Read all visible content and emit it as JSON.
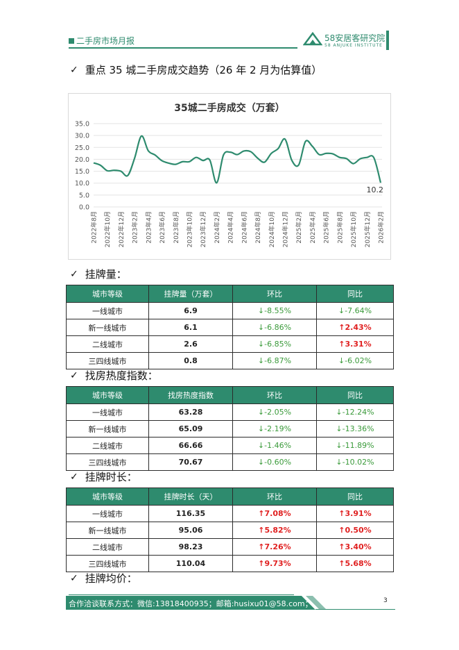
{
  "header": {
    "title": "二手房市场月报",
    "logo_name": "58安居客研究院",
    "logo_sub": "58 ANJUKE INSTITUTE"
  },
  "section1": {
    "title": "重点 35 城二手房成交趋势（26 年 2 月为估算值）"
  },
  "chart_data": {
    "type": "line",
    "title": "35城二手房成交（万套）",
    "x": [
      "2022年8月",
      "2022年9月",
      "2022年10月",
      "2022年11月",
      "2022年12月",
      "2023年1月",
      "2023年2月",
      "2023年3月",
      "2023年4月",
      "2023年5月",
      "2023年6月",
      "2023年7月",
      "2023年8月",
      "2023年9月",
      "2023年10月",
      "2023年11月",
      "2023年12月",
      "2024年1月",
      "2024年2月",
      "2024年3月",
      "2024年4月",
      "2024年5月",
      "2024年6月",
      "2024年7月",
      "2024年8月",
      "2024年9月",
      "2024年10月",
      "2024年11月",
      "2024年12月",
      "2025年1月",
      "2025年2月",
      "2025年3月",
      "2025年4月",
      "2025年5月",
      "2025年6月",
      "2025年7月",
      "2025年8月",
      "2025年9月",
      "2025年10月",
      "2025年11月",
      "2025年12月",
      "2026年1月",
      "2026年2月"
    ],
    "tick_labels": [
      "2022年8月",
      "2022年10月",
      "2022年12月",
      "2023年2月",
      "2023年4月",
      "2023年6月",
      "2023年8月",
      "2023年10月",
      "2023年12月",
      "2024年2月",
      "2024年4月",
      "2024年6月",
      "2024年8月",
      "2024年10月",
      "2024年12月",
      "2025年2月",
      "2025年4月",
      "2025年6月",
      "2025年8月",
      "2025年10月",
      "2025年12月",
      "2026年2月"
    ],
    "series": [
      {
        "values": [
          18.5,
          17.5,
          15.2,
          15.4,
          15.0,
          13.2,
          20.5,
          29.8,
          23.6,
          21.8,
          19.4,
          18.4,
          17.9,
          19.0,
          19.0,
          20.8,
          19.5,
          19.7,
          10.1,
          21.8,
          23.0,
          22.0,
          23.5,
          23.2,
          20.5,
          18.8,
          22.5,
          24.5,
          28.5,
          19.6,
          17.6,
          27.5,
          25.5,
          22.0,
          22.5,
          22.3,
          20.8,
          20.3,
          18.2,
          20.2,
          20.8,
          20.7,
          10.2
        ]
      }
    ],
    "ylim": [
      0,
      35
    ],
    "yticks": [
      "0.0",
      "5.0",
      "10.0",
      "15.0",
      "20.0",
      "25.0",
      "30.0",
      "35.0"
    ],
    "data_label": "10.2",
    "line_color": "#2e8b6e",
    "grid": true
  },
  "columns": {
    "level": "城市等级",
    "mom": "环比",
    "yoy": "同比"
  },
  "listing_count": {
    "title": "挂牌量：",
    "metric_header": "挂牌量（万套）",
    "rows": [
      {
        "city": "一线城市",
        "value": "6.9",
        "mom": "↓-8.55%",
        "yoy": "↓-7.64%",
        "mom_dir": "down",
        "yoy_dir": "down"
      },
      {
        "city": "新一线城市",
        "value": "6.1",
        "mom": "↓-6.86%",
        "yoy": "↑2.43%",
        "mom_dir": "down",
        "yoy_dir": "up"
      },
      {
        "city": "二线城市",
        "value": "2.6",
        "mom": "↓-6.85%",
        "yoy": "↑3.31%",
        "mom_dir": "down",
        "yoy_dir": "up"
      },
      {
        "city": "三四线城市",
        "value": "0.8",
        "mom": "↓-6.87%",
        "yoy": "↓-6.02%",
        "mom_dir": "down",
        "yoy_dir": "down"
      }
    ]
  },
  "search_heat": {
    "title": "找房热度指数：",
    "metric_header": "找房热度指数",
    "rows": [
      {
        "city": "一线城市",
        "value": "63.28",
        "mom": "↓-2.05%",
        "yoy": "↓-12.24%",
        "mom_dir": "down",
        "yoy_dir": "down"
      },
      {
        "city": "新一线城市",
        "value": "65.09",
        "mom": "↓-2.19%",
        "yoy": "↓-13.36%",
        "mom_dir": "down",
        "yoy_dir": "down"
      },
      {
        "city": "二线城市",
        "value": "66.66",
        "mom": "↓-1.46%",
        "yoy": "↓-11.89%",
        "mom_dir": "down",
        "yoy_dir": "down"
      },
      {
        "city": "三四线城市",
        "value": "70.67",
        "mom": "↓-0.60%",
        "yoy": "↓-10.02%",
        "mom_dir": "down",
        "yoy_dir": "down"
      }
    ]
  },
  "listing_duration": {
    "title": "挂牌时长：",
    "metric_header": "挂牌时长（天）",
    "rows": [
      {
        "city": "一线城市",
        "value": "116.35",
        "mom": "↑7.08%",
        "yoy": "↑3.91%",
        "mom_dir": "up",
        "yoy_dir": "up"
      },
      {
        "city": "新一线城市",
        "value": "95.06",
        "mom": "↑5.82%",
        "yoy": "↑0.50%",
        "mom_dir": "up",
        "yoy_dir": "up"
      },
      {
        "city": "二线城市",
        "value": "98.23",
        "mom": "↑7.26%",
        "yoy": "↑3.40%",
        "mom_dir": "up",
        "yoy_dir": "up"
      },
      {
        "city": "三四线城市",
        "value": "110.04",
        "mom": "↑9.73%",
        "yoy": "↑5.68%",
        "mom_dir": "up",
        "yoy_dir": "up"
      }
    ]
  },
  "avg_price": {
    "title": "挂牌均价："
  },
  "footer": {
    "contact": "合作洽谈联系方式：微信:13818400935；邮箱:husixu01@58.com；",
    "page": "3"
  }
}
